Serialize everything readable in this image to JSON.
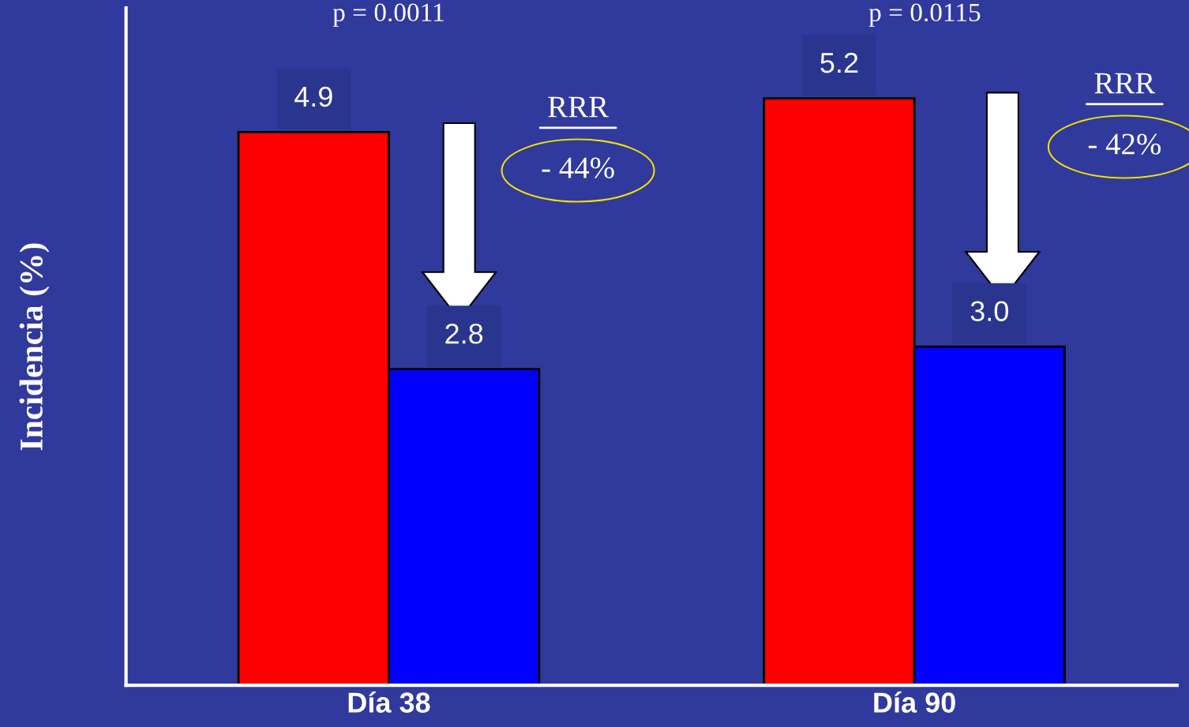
{
  "chart_data": {
    "type": "bar",
    "categories": [
      "Día 38",
      "Día 90"
    ],
    "series": [
      {
        "color": "#ff0000",
        "values": [
          4.9,
          5.2
        ],
        "value_labels": [
          "4.9",
          "5.2"
        ]
      },
      {
        "color": "#0000ff",
        "values": [
          2.8,
          3.0
        ],
        "value_labels": [
          "2.8",
          "3.0"
        ]
      }
    ],
    "ylabel": "Incidencia (%)",
    "ylim": [
      0,
      6
    ],
    "tick_labels": "x",
    "grid": false,
    "legend": false,
    "annotations": [
      "p = 0.0011",
      "p = 0.0115",
      "RRR",
      "- 44%",
      "RRR",
      "- 42%"
    ]
  }
}
